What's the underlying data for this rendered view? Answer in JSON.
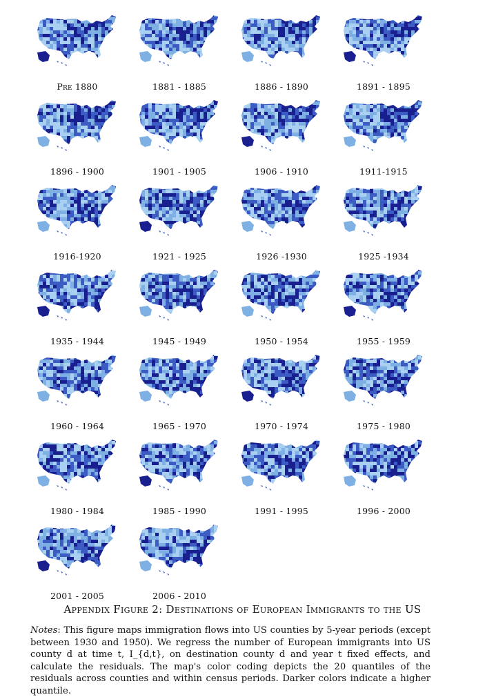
{
  "panels": [
    {
      "label": "Pre 1880"
    },
    {
      "label": "1881 - 1885"
    },
    {
      "label": "1886 - 1890"
    },
    {
      "label": "1891 - 1895"
    },
    {
      "label": "1896 - 1900"
    },
    {
      "label": "1901 - 1905"
    },
    {
      "label": "1906 - 1910"
    },
    {
      "label": "1911-1915"
    },
    {
      "label": "1916-1920"
    },
    {
      "label": "1921 - 1925"
    },
    {
      "label": "1926 -1930"
    },
    {
      "label": "1925 -1934"
    },
    {
      "label": "1935 - 1944"
    },
    {
      "label": "1945 - 1949"
    },
    {
      "label": "1950 - 1954"
    },
    {
      "label": "1955 - 1959"
    },
    {
      "label": "1960 - 1964"
    },
    {
      "label": "1965 - 1970"
    },
    {
      "label": "1970 - 1974"
    },
    {
      "label": "1975 - 1980"
    },
    {
      "label": "1980 - 1984"
    },
    {
      "label": "1985 - 1990"
    },
    {
      "label": "1991 - 1995"
    },
    {
      "label": "1996 - 2000"
    },
    {
      "label": "2001 - 2005"
    },
    {
      "label": "2006 - 2010"
    }
  ],
  "figure_caption": "Appendix Figure 2: Destinations of European Immigrants to the US",
  "notes": {
    "label": "Notes",
    "text": ": This figure maps immigration flows into US counties by 5-year periods (except between 1930 and 1950). We regress the number of European immigrants into US county d at time t, I_{d,t}, on destination county d and year t fixed effects, and calculate the residuals. The map's color coding depicts the 20 quantiles of the residuals across counties and within census periods. Darker colors indicate a higher quantile."
  },
  "colors": {
    "dark": "#1a1f8f",
    "mid": "#3c5cc4",
    "light": "#7fb0e3",
    "pale": "#a9d0f0"
  }
}
